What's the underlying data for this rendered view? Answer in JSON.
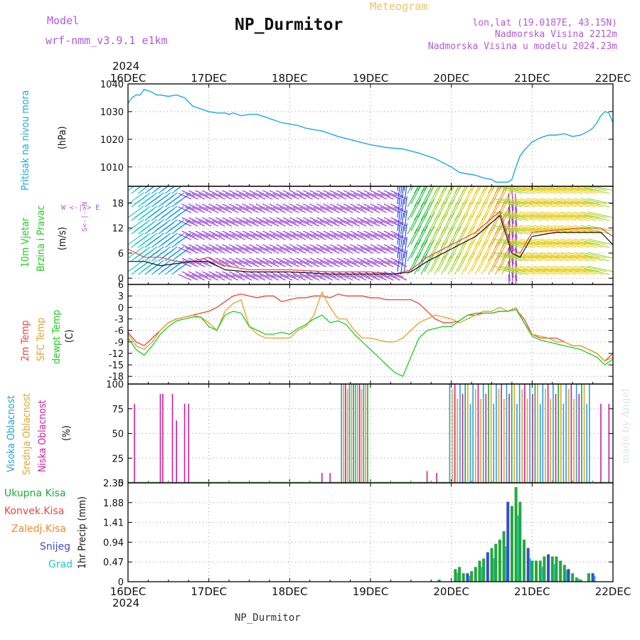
{
  "header": {
    "model_label": "Model",
    "model_name": "wrf-nmm_v3.9.1 e1km",
    "title": "NP_Durmitor",
    "subtitle": "Meteogram",
    "lonlat": "lon,lat (19.0187E, 43.15N)",
    "altitude": "Nadmorska Visina 2212m",
    "model_altitude": "Nadmorska Visina u modelu 2024.23m",
    "credit": "made by Angel",
    "footer": "NP_Durmitor"
  },
  "axis": {
    "year": "2024",
    "days": [
      "16DEC",
      "17DEC",
      "18DEC",
      "19DEC",
      "20DEC",
      "21DEC",
      "22DEC"
    ]
  },
  "panel_labels": {
    "pressure": [
      "Pritisak na nivou mora"
    ],
    "pressure_unit": "(hPa)",
    "wind": [
      "10m Vjetar",
      "Brzina i Pravac"
    ],
    "wind_unit": "(m/s)",
    "wind_compass": "W  <-|->  E",
    "wind_compass_ns": "S<-|->N",
    "temp": [
      "2m Temp",
      "SFC Temp",
      "dewpt Temp"
    ],
    "temp_unit": "(C)",
    "cloud": [
      "Visoka Oblacnost",
      "Srednja Oblacnost",
      "Niska Oblacnost"
    ],
    "cloud_unit": "(%)",
    "precip_unit": "1hr Precip (mm)",
    "precip_legend": [
      "Ukupna Kisa",
      "Konvek.Kisa",
      "Zaledj.Kisa",
      "Snijeg",
      "Grad"
    ]
  },
  "colors": {
    "pressure": "#1ca8e4",
    "t2m": "#e8453c",
    "tsfc": "#e3a02c",
    "dewpt": "#20cc20",
    "cloud_high": "#2a9fd6",
    "cloud_mid": "#e0a52a",
    "cloud_low": "#cc1f9a",
    "precip_total": "#23a83d",
    "precip_conv": "#e84545",
    "precip_frz": "#ef8c2a",
    "snow": "#3f48d0",
    "hail": "#20c8c8",
    "wind_speed": "#111111",
    "wind_gust": "#e84545",
    "model": "#b05ad8",
    "subtitle": "#f0c070"
  },
  "chart_data": [
    {
      "type": "line",
      "name": "pressure",
      "ylim": [
        1003,
        1040
      ],
      "yticks": [
        1010,
        1020,
        1030,
        1040
      ],
      "x_days": [
        0,
        0.05,
        0.1,
        0.15,
        0.2,
        0.25,
        0.3,
        0.35,
        0.4,
        0.5,
        0.6,
        0.7,
        0.8,
        0.9,
        1.0,
        1.1,
        1.2,
        1.25,
        1.3,
        1.4,
        1.5,
        1.6,
        1.7,
        1.8,
        1.9,
        2.0,
        2.1,
        2.2,
        2.4,
        2.6,
        2.8,
        3.0,
        3.2,
        3.4,
        3.6,
        3.8,
        4.0,
        4.1,
        4.2,
        4.3,
        4.4,
        4.5,
        4.55,
        4.6,
        4.65,
        4.7,
        4.75,
        4.8,
        4.85,
        4.9,
        5.0,
        5.1,
        5.2,
        5.3,
        5.4,
        5.5,
        5.6,
        5.7,
        5.75,
        5.8,
        5.85,
        5.9,
        5.95,
        6.0
      ],
      "values": [
        1033,
        1035,
        1036,
        1036,
        1038,
        1037.5,
        1037,
        1036,
        1036,
        1035.5,
        1036,
        1035,
        1032,
        1031,
        1030,
        1029.5,
        1029.5,
        1029,
        1029.5,
        1028.5,
        1029,
        1029,
        1028,
        1027,
        1026,
        1025.5,
        1025,
        1024,
        1023,
        1021,
        1019.5,
        1018,
        1017,
        1016.5,
        1015,
        1013,
        1010,
        1008,
        1007.5,
        1007,
        1006,
        1005.5,
        1004.5,
        1004.5,
        1004.5,
        1004.5,
        1005.5,
        1010,
        1014,
        1016,
        1019,
        1020.5,
        1021.5,
        1021.5,
        1022,
        1021,
        1021.5,
        1023,
        1024,
        1026,
        1028.5,
        1030,
        1029.5,
        1026
      ]
    },
    {
      "type": "barbs",
      "name": "wind",
      "ylim": [
        -1.5,
        22
      ],
      "yticks": [
        0,
        6,
        12,
        18
      ],
      "speed": {
        "x_days": [
          0,
          0.2,
          0.4,
          0.6,
          0.8,
          1.0,
          1.2,
          1.5,
          2.0,
          2.5,
          3.0,
          3.3,
          3.5,
          3.7,
          4.0,
          4.3,
          4.6,
          4.75,
          4.85,
          5.0,
          5.3,
          5.6,
          5.85,
          6.0
        ],
        "values": [
          4,
          4,
          3,
          3.5,
          4,
          4,
          2,
          1.5,
          1.5,
          1,
          1,
          1,
          1.5,
          4,
          7,
          10,
          15,
          6,
          5,
          10,
          11,
          11,
          11,
          8
        ]
      },
      "gust": {
        "x_days": [
          0,
          0.2,
          0.4,
          0.6,
          0.8,
          1.0,
          1.2,
          1.5,
          2.0,
          2.5,
          3.0,
          3.3,
          3.5,
          3.7,
          4.0,
          4.3,
          4.6,
          4.75,
          4.85,
          5.0,
          5.3,
          5.6,
          5.85,
          6.0
        ],
        "values": [
          7,
          5,
          5,
          4,
          4,
          5,
          3,
          2,
          2,
          1.5,
          1.5,
          1,
          2,
          5,
          8,
          11,
          16,
          7,
          6,
          11,
          11.5,
          12,
          12,
          10
        ]
      }
    },
    {
      "type": "line",
      "name": "temperature",
      "ylim": [
        -20,
        6
      ],
      "yticks": [
        -18,
        -15,
        -12,
        -9,
        -6,
        -3,
        0,
        3,
        6
      ],
      "x_days": [
        0,
        0.1,
        0.2,
        0.3,
        0.4,
        0.5,
        0.6,
        0.7,
        0.8,
        0.9,
        1.0,
        1.1,
        1.2,
        1.3,
        1.4,
        1.5,
        1.6,
        1.7,
        1.8,
        1.9,
        2.0,
        2.1,
        2.2,
        2.3,
        2.4,
        2.5,
        2.6,
        2.7,
        2.8,
        2.9,
        3.0,
        3.1,
        3.2,
        3.3,
        3.4,
        3.5,
        3.6,
        3.7,
        3.8,
        3.9,
        4.0,
        4.1,
        4.2,
        4.3,
        4.4,
        4.5,
        4.6,
        4.7,
        4.8,
        4.9,
        5.0,
        5.1,
        5.2,
        5.3,
        5.4,
        5.5,
        5.6,
        5.7,
        5.8,
        5.9,
        6.0
      ],
      "series": [
        {
          "name": "2m Temp",
          "color_key": "t2m",
          "values": [
            -6.5,
            -9,
            -10,
            -8,
            -6,
            -4,
            -3,
            -2.5,
            -2,
            -1.5,
            -1,
            0,
            1.5,
            3,
            3.5,
            3,
            2.5,
            3,
            3,
            1.5,
            2,
            2.5,
            2.5,
            3,
            3,
            2.5,
            3.5,
            3,
            3,
            3,
            2.5,
            2.5,
            2,
            2,
            2,
            2,
            1,
            -1,
            -3,
            -4,
            -4,
            -3.5,
            -2,
            -2,
            -1.5,
            -1.5,
            -1,
            -1,
            -0.5,
            -3,
            -7,
            -8,
            -8,
            -8,
            -9,
            -10,
            -10,
            -11,
            -12,
            -14,
            -12
          ]
        },
        {
          "name": "SFC Temp",
          "color_key": "tsfc",
          "values": [
            -7,
            -10,
            -11,
            -9,
            -6,
            -4,
            -3,
            -2.5,
            -2,
            -2.5,
            -4,
            -6,
            -1,
            1,
            2,
            -5,
            -7,
            -8,
            -8,
            -8,
            -8,
            -6,
            -5,
            -2,
            4,
            0,
            -3,
            -3,
            -6,
            -8,
            -8,
            -8.5,
            -9,
            -9,
            -8,
            -6,
            -4,
            -3,
            -2,
            -2.5,
            -3,
            -4,
            -3,
            -2,
            -1,
            -1,
            0,
            -1,
            0,
            -4,
            -7,
            -7.5,
            -8,
            -9,
            -9,
            -10,
            -10,
            -11,
            -12,
            -14,
            -13
          ]
        },
        {
          "name": "dewpt Temp",
          "color_key": "dewpt",
          "values": [
            -8,
            -11,
            -12.5,
            -10,
            -7,
            -5,
            -3.5,
            -3,
            -2.5,
            -2.5,
            -5,
            -6,
            -2,
            -1,
            -1.5,
            -5,
            -6,
            -7,
            -7,
            -6.5,
            -7,
            -5.5,
            -4.5,
            -3,
            -2,
            -4,
            -3.5,
            -4.5,
            -7,
            -9,
            -11,
            -13,
            -15,
            -17,
            -18,
            -13,
            -8,
            -6,
            -5.5,
            -5,
            -5,
            -3.5,
            -2,
            -1.5,
            -1.5,
            -1.5,
            -1,
            -1,
            -0.5,
            -4,
            -7.5,
            -8.5,
            -9,
            -9.5,
            -10,
            -10.5,
            -11,
            -12,
            -13,
            -15,
            -13.5
          ]
        }
      ]
    },
    {
      "type": "bar",
      "name": "cloud cover",
      "ylim": [
        0,
        100
      ],
      "yticks": [
        0,
        25,
        50,
        75,
        100
      ]
    },
    {
      "type": "bar",
      "name": "precipitation",
      "ylim": [
        0,
        2.35
      ],
      "yticks": [
        0,
        0.47,
        0.94,
        1.41,
        1.88,
        2.35
      ],
      "x_days": [
        3.85,
        4.05,
        4.1,
        4.15,
        4.2,
        4.25,
        4.3,
        4.35,
        4.4,
        4.45,
        4.5,
        4.55,
        4.6,
        4.65,
        4.7,
        4.75,
        4.8,
        4.85,
        4.9,
        4.95,
        5.0,
        5.05,
        5.1,
        5.15,
        5.2,
        5.25,
        5.3,
        5.35,
        5.4,
        5.45,
        5.5,
        5.55,
        5.6,
        5.7,
        5.75
      ],
      "values": [
        0.05,
        0.3,
        0.35,
        0.2,
        0.2,
        0.25,
        0.35,
        0.5,
        0.55,
        0.7,
        0.8,
        0.9,
        1.0,
        1.2,
        1.9,
        1.8,
        2.25,
        1.9,
        1.0,
        0.8,
        0.5,
        0.5,
        0.5,
        0.6,
        0.65,
        0.6,
        0.6,
        0.5,
        0.4,
        0.3,
        0.2,
        0.1,
        0.05,
        0.2,
        0.2
      ]
    }
  ]
}
